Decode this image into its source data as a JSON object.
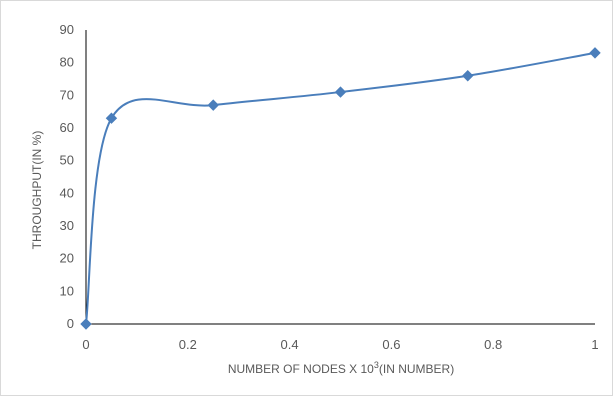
{
  "chart_data": {
    "type": "line",
    "title": "",
    "xlabel": "NUMBER OF NODES X 10",
    "xlabel_superscript": "3",
    "xlabel_suffix": "(IN NUMBER)",
    "ylabel": "THROUGHPUT(IN %)",
    "xlim": [
      0,
      1
    ],
    "ylim": [
      0,
      90
    ],
    "x_ticks": [
      0,
      0.2,
      0.4,
      0.6,
      0.8,
      1
    ],
    "x_tick_labels": [
      "0",
      "0.2",
      "0.4",
      "0.6",
      "0.8",
      "1"
    ],
    "y_ticks": [
      0,
      10,
      20,
      30,
      40,
      50,
      60,
      70,
      80,
      90
    ],
    "y_tick_labels": [
      "0",
      "10",
      "20",
      "30",
      "40",
      "50",
      "60",
      "70",
      "80",
      "90"
    ],
    "grid": false,
    "smooth": true,
    "marker": "diamond",
    "color": "#4a7ebb",
    "series": [
      {
        "x": [
          0,
          0.05,
          0.25,
          0.5,
          0.75,
          1
        ],
        "y": [
          0,
          63,
          67,
          71,
          76,
          83
        ]
      }
    ]
  }
}
